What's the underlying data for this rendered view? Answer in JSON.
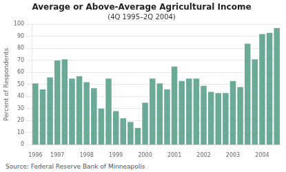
{
  "chart_data": {
    "type": "bar",
    "title": "Average or Above-Average Agricultural Income",
    "subtitle": "(4Q 1995–2Q 2004)",
    "ylabel": "Percent of Respondents",
    "annotations": [
      "Source: Federal Reserve Bank of Minneapolis"
    ],
    "categories": [
      "1996",
      null,
      null,
      "1997",
      null,
      null,
      null,
      "1998",
      null,
      null,
      null,
      "1999",
      null,
      null,
      null,
      "2000",
      null,
      null,
      null,
      "2001",
      null,
      null,
      null,
      "2002",
      null,
      null,
      null,
      "2003",
      null,
      null,
      null,
      "2004",
      null,
      null
    ],
    "values": [
      51,
      46,
      56,
      70,
      71,
      55,
      57,
      52,
      47,
      30,
      55,
      28,
      22,
      19,
      14,
      35,
      55,
      51,
      46,
      65,
      53,
      55,
      55,
      49,
      44,
      43,
      43,
      53,
      48,
      84,
      71,
      92,
      93,
      97
    ],
    "color": "#6aaa96",
    "ylim": [
      0,
      100
    ],
    "yticks": [
      0,
      10,
      20,
      30,
      40,
      50,
      60,
      70,
      80,
      90,
      100
    ],
    "grid": true
  }
}
